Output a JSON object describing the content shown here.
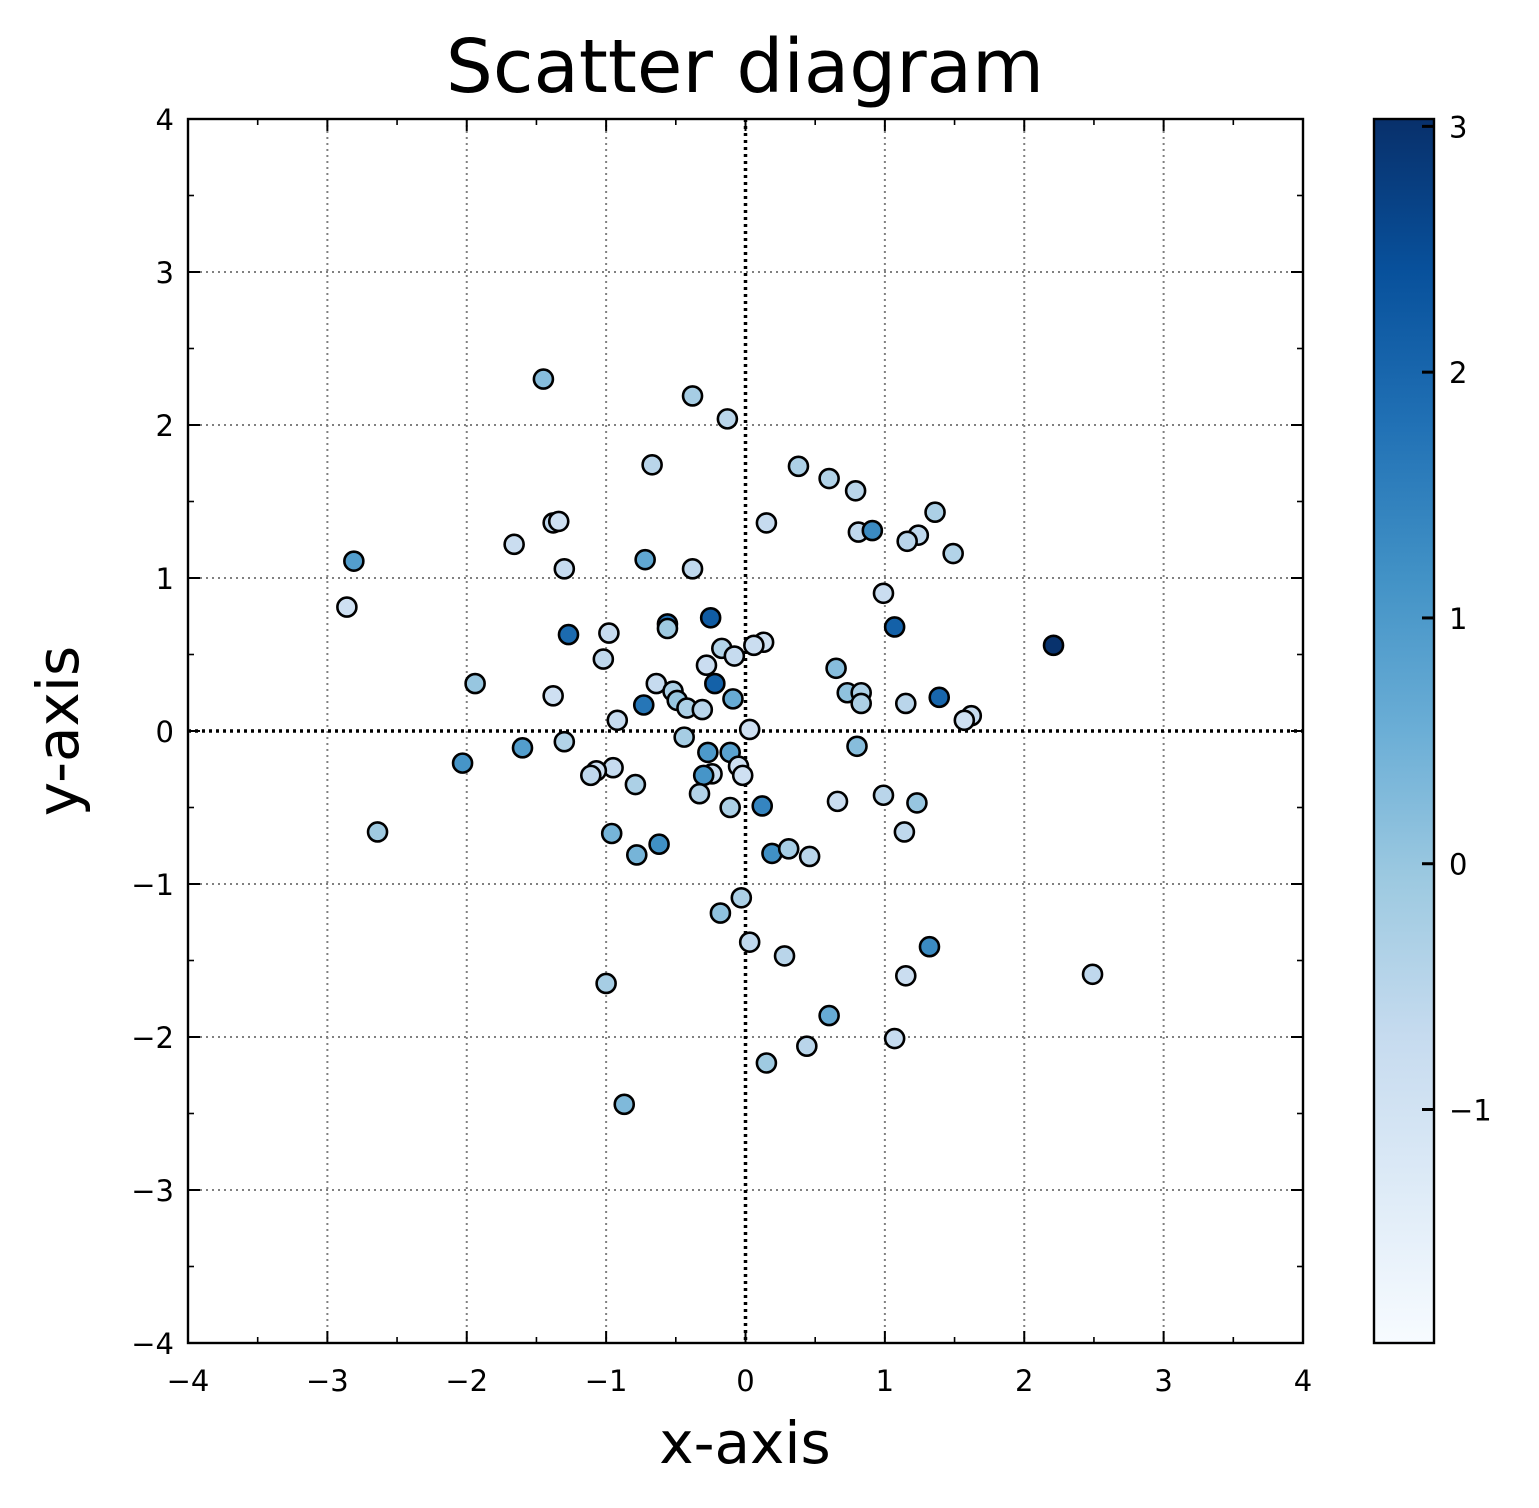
{
  "chart_data": {
    "type": "scatter",
    "title": "Scatter diagram",
    "xlabel": "x-axis",
    "ylabel": "y-axis",
    "xlim": [
      -4,
      4
    ],
    "ylim": [
      -4,
      4
    ],
    "xticks": [
      -4,
      -3,
      -2,
      -1,
      0,
      1,
      2,
      3,
      4
    ],
    "yticks": [
      -4,
      -3,
      -2,
      -1,
      0,
      1,
      2,
      3,
      4
    ],
    "xtick_labels": [
      "−4",
      "−3",
      "−2",
      "−1",
      "0",
      "1",
      "2",
      "3",
      "4"
    ],
    "ytick_labels": [
      "−4",
      "−3",
      "−2",
      "−1",
      "0",
      "1",
      "2",
      "3",
      "4"
    ],
    "grid": true,
    "colormap": "Blues",
    "colorbar": {
      "range": [
        -1.95,
        3.03
      ],
      "ticks": [
        -1,
        0,
        1,
        2,
        3
      ],
      "tick_labels": [
        "−1",
        "0",
        "1",
        "2",
        "3"
      ],
      "colors": [
        "#f7fbff",
        "#deebf7",
        "#c6dbef",
        "#9ecae1",
        "#6baed6",
        "#4292c6",
        "#2171b5",
        "#08519c",
        "#08306b"
      ]
    },
    "points": [
      {
        "x": -1.45,
        "y": 2.3,
        "c": 0.2
      },
      {
        "x": -0.38,
        "y": 2.19,
        "c": -0.2
      },
      {
        "x": -0.13,
        "y": 2.04,
        "c": -0.5
      },
      {
        "x": -0.67,
        "y": 1.74,
        "c": -0.5
      },
      {
        "x": 0.38,
        "y": 1.73,
        "c": -0.3
      },
      {
        "x": 0.6,
        "y": 1.65,
        "c": -0.4
      },
      {
        "x": 0.79,
        "y": 1.57,
        "c": -0.5
      },
      {
        "x": 1.36,
        "y": 1.43,
        "c": -0.3
      },
      {
        "x": -1.38,
        "y": 1.36,
        "c": -0.6
      },
      {
        "x": -1.34,
        "y": 1.37,
        "c": -0.9
      },
      {
        "x": 0.15,
        "y": 1.36,
        "c": -0.7
      },
      {
        "x": 0.81,
        "y": 1.3,
        "c": -0.6
      },
      {
        "x": 0.91,
        "y": 1.31,
        "c": 1.3
      },
      {
        "x": 1.24,
        "y": 1.28,
        "c": -0.6
      },
      {
        "x": 1.16,
        "y": 1.24,
        "c": -0.5
      },
      {
        "x": -1.66,
        "y": 1.22,
        "c": -0.8
      },
      {
        "x": 1.49,
        "y": 1.16,
        "c": -0.4
      },
      {
        "x": -2.81,
        "y": 1.11,
        "c": 0.9
      },
      {
        "x": -0.72,
        "y": 1.12,
        "c": 0.7
      },
      {
        "x": -1.3,
        "y": 1.06,
        "c": -0.7
      },
      {
        "x": -0.38,
        "y": 1.06,
        "c": -0.6
      },
      {
        "x": 0.99,
        "y": 0.9,
        "c": -0.8
      },
      {
        "x": -2.86,
        "y": 0.81,
        "c": -0.9
      },
      {
        "x": -0.56,
        "y": 0.7,
        "c": 1.8
      },
      {
        "x": -0.56,
        "y": 0.67,
        "c": -0.1
      },
      {
        "x": -0.25,
        "y": 0.74,
        "c": 2.2
      },
      {
        "x": 1.07,
        "y": 0.68,
        "c": 2.1
      },
      {
        "x": -1.27,
        "y": 0.63,
        "c": 1.9
      },
      {
        "x": -0.98,
        "y": 0.64,
        "c": -0.7
      },
      {
        "x": 0.13,
        "y": 0.58,
        "c": -0.9
      },
      {
        "x": 0.06,
        "y": 0.56,
        "c": -0.8
      },
      {
        "x": -0.17,
        "y": 0.54,
        "c": -0.4
      },
      {
        "x": 2.21,
        "y": 0.56,
        "c": 3.0
      },
      {
        "x": -1.02,
        "y": 0.47,
        "c": -0.6
      },
      {
        "x": -0.08,
        "y": 0.49,
        "c": -0.7
      },
      {
        "x": -0.28,
        "y": 0.43,
        "c": -0.8
      },
      {
        "x": 0.65,
        "y": 0.41,
        "c": 0.2
      },
      {
        "x": -1.94,
        "y": 0.31,
        "c": 0.0
      },
      {
        "x": -0.64,
        "y": 0.31,
        "c": -0.7
      },
      {
        "x": -0.22,
        "y": 0.31,
        "c": 2.1
      },
      {
        "x": -0.52,
        "y": 0.26,
        "c": -0.3
      },
      {
        "x": 0.73,
        "y": 0.25,
        "c": 0.1
      },
      {
        "x": 0.83,
        "y": 0.25,
        "c": -0.3
      },
      {
        "x": -1.38,
        "y": 0.23,
        "c": -0.9
      },
      {
        "x": 1.39,
        "y": 0.22,
        "c": 2.0
      },
      {
        "x": -0.09,
        "y": 0.21,
        "c": 0.6
      },
      {
        "x": -0.49,
        "y": 0.2,
        "c": 0.0
      },
      {
        "x": 0.83,
        "y": 0.18,
        "c": -0.3
      },
      {
        "x": 1.15,
        "y": 0.18,
        "c": -0.5
      },
      {
        "x": -0.73,
        "y": 0.17,
        "c": 1.7
      },
      {
        "x": -0.42,
        "y": 0.15,
        "c": -0.3
      },
      {
        "x": -0.31,
        "y": 0.14,
        "c": -0.5
      },
      {
        "x": 1.62,
        "y": 0.1,
        "c": -0.7
      },
      {
        "x": 1.57,
        "y": 0.07,
        "c": -0.9
      },
      {
        "x": -0.92,
        "y": 0.07,
        "c": -0.7
      },
      {
        "x": 0.03,
        "y": 0.01,
        "c": -0.9
      },
      {
        "x": -0.44,
        "y": -0.04,
        "c": -0.2
      },
      {
        "x": -1.3,
        "y": -0.07,
        "c": -0.4
      },
      {
        "x": 0.8,
        "y": -0.1,
        "c": 0.2
      },
      {
        "x": -1.6,
        "y": -0.11,
        "c": 0.9
      },
      {
        "x": -0.27,
        "y": -0.14,
        "c": 1.0
      },
      {
        "x": -0.11,
        "y": -0.14,
        "c": 0.8
      },
      {
        "x": -2.03,
        "y": -0.21,
        "c": 1.1
      },
      {
        "x": -0.05,
        "y": -0.23,
        "c": -0.9
      },
      {
        "x": -0.95,
        "y": -0.24,
        "c": -0.7
      },
      {
        "x": -1.07,
        "y": -0.26,
        "c": -0.9
      },
      {
        "x": -0.24,
        "y": -0.28,
        "c": -0.8
      },
      {
        "x": -0.3,
        "y": -0.29,
        "c": 1.1
      },
      {
        "x": -0.02,
        "y": -0.29,
        "c": -0.9
      },
      {
        "x": -1.11,
        "y": -0.29,
        "c": -0.6
      },
      {
        "x": -0.79,
        "y": -0.35,
        "c": -0.3
      },
      {
        "x": -0.33,
        "y": -0.41,
        "c": -0.4
      },
      {
        "x": 0.99,
        "y": -0.42,
        "c": -0.5
      },
      {
        "x": 0.66,
        "y": -0.46,
        "c": -0.8
      },
      {
        "x": 1.23,
        "y": -0.47,
        "c": 0.0
      },
      {
        "x": -0.11,
        "y": -0.5,
        "c": -0.3
      },
      {
        "x": 0.12,
        "y": -0.49,
        "c": 1.4
      },
      {
        "x": -2.64,
        "y": -0.66,
        "c": -0.1
      },
      {
        "x": 1.14,
        "y": -0.66,
        "c": -0.6
      },
      {
        "x": -0.96,
        "y": -0.67,
        "c": 0.4
      },
      {
        "x": -0.62,
        "y": -0.74,
        "c": 1.2
      },
      {
        "x": -0.78,
        "y": -0.81,
        "c": 0.4
      },
      {
        "x": 0.19,
        "y": -0.8,
        "c": 1.2
      },
      {
        "x": 0.31,
        "y": -0.77,
        "c": -0.2
      },
      {
        "x": 0.46,
        "y": -0.82,
        "c": -0.5
      },
      {
        "x": -0.03,
        "y": -1.09,
        "c": -0.3
      },
      {
        "x": -0.18,
        "y": -1.19,
        "c": 0.1
      },
      {
        "x": 0.03,
        "y": -1.38,
        "c": -0.6
      },
      {
        "x": 1.32,
        "y": -1.41,
        "c": 1.3
      },
      {
        "x": 0.28,
        "y": -1.47,
        "c": -0.5
      },
      {
        "x": 1.15,
        "y": -1.6,
        "c": -0.8
      },
      {
        "x": 2.49,
        "y": -1.59,
        "c": -0.6
      },
      {
        "x": -1.0,
        "y": -1.65,
        "c": -0.2
      },
      {
        "x": 0.6,
        "y": -1.86,
        "c": 0.6
      },
      {
        "x": 1.07,
        "y": -2.01,
        "c": -0.7
      },
      {
        "x": 0.44,
        "y": -2.06,
        "c": -0.5
      },
      {
        "x": 0.15,
        "y": -2.17,
        "c": -0.1
      },
      {
        "x": -0.87,
        "y": -2.44,
        "c": 0.3
      }
    ]
  }
}
